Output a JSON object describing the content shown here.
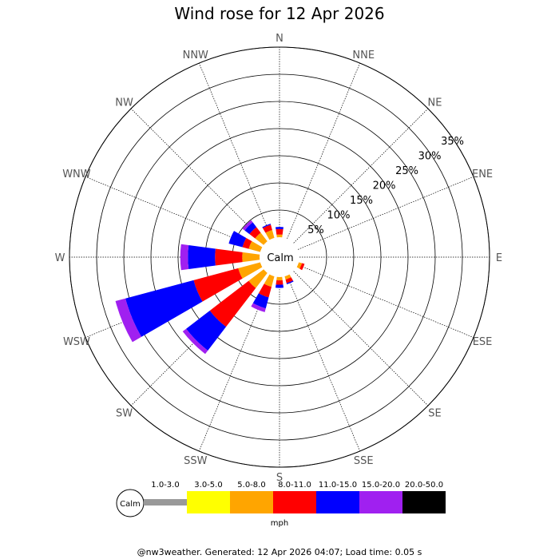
{
  "chart_data": {
    "type": "windrose",
    "title": "Wind rose for 12 Apr 2026",
    "center_label": "Calm",
    "directions": [
      "N",
      "NNE",
      "NE",
      "ENE",
      "E",
      "ESE",
      "SE",
      "SSE",
      "S",
      "SSW",
      "SW",
      "WSW",
      "W",
      "WNW",
      "NW",
      "NNW"
    ],
    "ring_labels": [
      "5%",
      "10%",
      "15%",
      "20%",
      "25%",
      "30%",
      "35%"
    ],
    "rings": [
      5,
      10,
      15,
      20,
      25,
      30,
      35
    ],
    "rmax": 35,
    "units": "mph",
    "bins": [
      {
        "label": "1.0-3.0",
        "color": "#999999"
      },
      {
        "label": "3.0-5.0",
        "color": "#ffff00"
      },
      {
        "label": "5.0-8.0",
        "color": "#ffa500"
      },
      {
        "label": "8.0-11.0",
        "color": "#ff0000"
      },
      {
        "label": "11.0-15.0",
        "color": "#0000ff"
      },
      {
        "label": "15.0-20.0",
        "color": "#a020f0"
      },
      {
        "label": "20.0-50.0",
        "color": "#000000"
      }
    ],
    "series": [
      {
        "direction": "N",
        "values": [
          0,
          0,
          0.5,
          1.0,
          0.4,
          0,
          0
        ]
      },
      {
        "direction": "NNE",
        "values": [
          0,
          0,
          0,
          0,
          0,
          0,
          0
        ]
      },
      {
        "direction": "NE",
        "values": [
          0,
          0,
          0,
          0,
          0,
          0,
          0
        ]
      },
      {
        "direction": "ENE",
        "values": [
          0,
          0,
          0,
          0,
          0,
          0,
          0
        ]
      },
      {
        "direction": "E",
        "values": [
          0,
          0,
          0,
          0,
          0,
          0,
          0
        ]
      },
      {
        "direction": "ESE",
        "values": [
          0,
          0,
          0.6,
          0.5,
          0,
          0,
          0
        ]
      },
      {
        "direction": "SE",
        "values": [
          0,
          0,
          0,
          0,
          0,
          0,
          0
        ]
      },
      {
        "direction": "SSE",
        "values": [
          0,
          0,
          0.6,
          0.7,
          0.2,
          0,
          0
        ]
      },
      {
        "direction": "S",
        "values": [
          0,
          0,
          0.6,
          0.8,
          0.6,
          0,
          0
        ]
      },
      {
        "direction": "SSW",
        "values": [
          0,
          0,
          2.0,
          2.0,
          2.1,
          0.7,
          0
        ]
      },
      {
        "direction": "SW",
        "values": [
          0,
          0,
          3.5,
          9.0,
          5.5,
          0.8,
          0
        ]
      },
      {
        "direction": "WSW",
        "values": [
          0,
          0,
          4.2,
          8.5,
          13.0,
          1.9,
          0
        ]
      },
      {
        "direction": "W",
        "values": [
          0,
          0,
          3.2,
          5.0,
          5.0,
          1.4,
          0
        ]
      },
      {
        "direction": "WNW",
        "values": [
          0,
          0,
          2.2,
          1.2,
          2.6,
          0,
          0
        ]
      },
      {
        "direction": "NW",
        "values": [
          0,
          0,
          2.0,
          1.3,
          1.1,
          0.5,
          0
        ]
      },
      {
        "direction": "NNW",
        "values": [
          0,
          0,
          1.5,
          1.0,
          0.2,
          0,
          0
        ]
      }
    ]
  },
  "footer": "@nw3weather. Generated: 12 Apr 2026 04:07; Load time: 0.05 s"
}
